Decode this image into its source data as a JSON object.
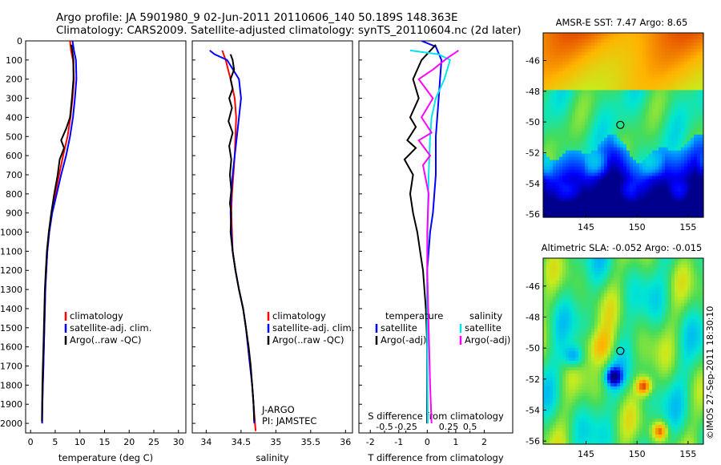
{
  "header": {
    "line1": "Argo profile: JA 5901980_9 02-Jun-2011 20110606_140 50.189S 148.363E",
    "line2": "Climatology: CARS2009. Satellite-adjusted climatology: synTS_20110604.nc (2d later)"
  },
  "watermark": "©IMOS 27-Sep-2011 18:30:10",
  "colors": {
    "climatology": "#ff0000",
    "satellite": "#0000ff",
    "argo": "#000000",
    "satellite_diff": "#00e5ee",
    "argo_adj_diff": "#ff00ff"
  },
  "depth_axis": {
    "min": 0,
    "max": 2050,
    "ticks": [
      0,
      100,
      200,
      300,
      400,
      500,
      600,
      700,
      800,
      900,
      1000,
      1100,
      1200,
      1300,
      1400,
      1500,
      1600,
      1700,
      1800,
      1900,
      2000
    ]
  },
  "chart_data": [
    {
      "type": "line",
      "id": "temperature",
      "xlabel": "temperature (deg C)",
      "xlim": [
        -1,
        31.5
      ],
      "xticks": [
        0,
        5,
        10,
        15,
        20,
        25,
        30
      ],
      "xticklabels": [
        "0",
        "5",
        "10",
        "15",
        "20",
        "25",
        "30"
      ],
      "legend": [
        "climatology",
        "satellite-adj. clim.",
        "Argo(..raw -QC)"
      ],
      "series": [
        {
          "name": "climatology",
          "color": "#ff0000",
          "points": [
            [
              8.0,
              0
            ],
            [
              8.2,
              50
            ],
            [
              8.6,
              100
            ],
            [
              8.8,
              200
            ],
            [
              8.5,
              300
            ],
            [
              8.1,
              400
            ],
            [
              7.5,
              500
            ],
            [
              6.6,
              600
            ],
            [
              5.8,
              700
            ],
            [
              5.0,
              800
            ],
            [
              4.3,
              900
            ],
            [
              3.8,
              1000
            ],
            [
              3.4,
              1100
            ],
            [
              3.2,
              1200
            ],
            [
              3.0,
              1300
            ],
            [
              2.9,
              1400
            ],
            [
              2.8,
              1500
            ],
            [
              2.7,
              1600
            ],
            [
              2.6,
              1700
            ],
            [
              2.5,
              1800
            ],
            [
              2.4,
              1900
            ],
            [
              2.35,
              2000
            ]
          ]
        },
        {
          "name": "satellite-adj. clim.",
          "color": "#0000ff",
          "points": [
            [
              8.5,
              0
            ],
            [
              8.8,
              50
            ],
            [
              9.2,
              100
            ],
            [
              9.3,
              200
            ],
            [
              9.0,
              300
            ],
            [
              8.6,
              400
            ],
            [
              8.0,
              500
            ],
            [
              7.2,
              600
            ],
            [
              6.2,
              700
            ],
            [
              5.3,
              800
            ],
            [
              4.4,
              900
            ],
            [
              3.8,
              1000
            ],
            [
              3.4,
              1100
            ],
            [
              3.2,
              1200
            ],
            [
              3.0,
              1300
            ],
            [
              2.9,
              1400
            ],
            [
              2.8,
              1500
            ],
            [
              2.7,
              1600
            ],
            [
              2.6,
              1700
            ],
            [
              2.5,
              1800
            ],
            [
              2.4,
              1900
            ],
            [
              2.35,
              2000
            ]
          ]
        },
        {
          "name": "Argo(..raw -QC)",
          "color": "#000000",
          "points": [
            [
              8.3,
              20
            ],
            [
              8.5,
              60
            ],
            [
              8.7,
              100
            ],
            [
              8.7,
              200
            ],
            [
              8.4,
              300
            ],
            [
              8.0,
              400
            ],
            [
              7.2,
              460
            ],
            [
              6.2,
              520
            ],
            [
              6.8,
              560
            ],
            [
              5.9,
              620
            ],
            [
              5.5,
              700
            ],
            [
              4.8,
              800
            ],
            [
              4.2,
              900
            ],
            [
              3.7,
              1000
            ],
            [
              3.3,
              1100
            ],
            [
              3.1,
              1200
            ],
            [
              2.9,
              1300
            ],
            [
              2.8,
              1400
            ],
            [
              2.7,
              1500
            ],
            [
              2.6,
              1600
            ],
            [
              2.5,
              1700
            ],
            [
              2.4,
              1800
            ],
            [
              2.35,
              1900
            ],
            [
              2.3,
              1990
            ]
          ]
        }
      ]
    },
    {
      "type": "line",
      "id": "salinity",
      "xlabel": "salinity",
      "xlim": [
        33.8,
        36.1
      ],
      "xticks": [
        34,
        34.5,
        35,
        35.5,
        36
      ],
      "xticklabels": [
        "34",
        "34.5",
        "35",
        "35.5",
        "36"
      ],
      "legend": [
        "climatology",
        "satellite-adj. clim.",
        "Argo(..raw -QC)"
      ],
      "annotation": [
        "J-ARGO",
        "PI: JAMSTEC"
      ],
      "series": [
        {
          "name": "climatology",
          "color": "#ff0000",
          "points": [
            [
              34.23,
              50
            ],
            [
              34.28,
              100
            ],
            [
              34.35,
              200
            ],
            [
              34.41,
              300
            ],
            [
              34.43,
              400
            ],
            [
              34.42,
              500
            ],
            [
              34.41,
              600
            ],
            [
              34.39,
              700
            ],
            [
              34.37,
              800
            ],
            [
              34.36,
              900
            ],
            [
              34.37,
              1000
            ],
            [
              34.38,
              1100
            ],
            [
              34.42,
              1200
            ],
            [
              34.47,
              1300
            ],
            [
              34.53,
              1400
            ],
            [
              34.57,
              1500
            ],
            [
              34.6,
              1600
            ],
            [
              34.63,
              1700
            ],
            [
              34.66,
              1800
            ],
            [
              34.68,
              1900
            ],
            [
              34.7,
              2000
            ],
            [
              34.71,
              2040
            ]
          ]
        },
        {
          "name": "satellite-adj. clim.",
          "color": "#0000ff",
          "points": [
            [
              34.05,
              50
            ],
            [
              34.12,
              70
            ],
            [
              34.3,
              100
            ],
            [
              34.47,
              200
            ],
            [
              34.5,
              300
            ],
            [
              34.47,
              400
            ],
            [
              34.44,
              500
            ],
            [
              34.41,
              600
            ],
            [
              34.38,
              700
            ],
            [
              34.36,
              800
            ],
            [
              34.35,
              900
            ],
            [
              34.36,
              1000
            ],
            [
              34.38,
              1100
            ],
            [
              34.42,
              1200
            ],
            [
              34.47,
              1300
            ],
            [
              34.53,
              1400
            ],
            [
              34.57,
              1500
            ],
            [
              34.6,
              1600
            ],
            [
              34.63,
              1700
            ],
            [
              34.66,
              1800
            ],
            [
              34.68,
              1900
            ],
            [
              34.69,
              2000
            ]
          ]
        },
        {
          "name": "Argo(..raw -QC)",
          "color": "#000000",
          "points": [
            [
              34.35,
              70
            ],
            [
              34.38,
              100
            ],
            [
              34.4,
              150
            ],
            [
              34.35,
              200
            ],
            [
              34.38,
              250
            ],
            [
              34.33,
              300
            ],
            [
              34.37,
              350
            ],
            [
              34.32,
              420
            ],
            [
              34.38,
              480
            ],
            [
              34.33,
              550
            ],
            [
              34.36,
              620
            ],
            [
              34.34,
              700
            ],
            [
              34.36,
              780
            ],
            [
              34.34,
              850
            ],
            [
              34.36,
              900
            ],
            [
              34.35,
              1000
            ],
            [
              34.38,
              1100
            ],
            [
              34.42,
              1200
            ],
            [
              34.47,
              1300
            ],
            [
              34.53,
              1400
            ],
            [
              34.57,
              1500
            ],
            [
              34.61,
              1600
            ],
            [
              34.64,
              1700
            ],
            [
              34.66,
              1800
            ],
            [
              34.68,
              1900
            ],
            [
              34.69,
              1990
            ]
          ]
        }
      ]
    },
    {
      "type": "line",
      "id": "difference",
      "xlabel": "T difference from climatology",
      "xlabel2": "S difference from climatology",
      "xlim": [
        -2.4,
        3.0
      ],
      "xticks": [
        -2,
        -1,
        0,
        1,
        2
      ],
      "xticklabels": [
        "-2",
        "-1",
        "0",
        "1",
        "2"
      ],
      "xticks2": [
        -1.5,
        -0.75,
        0.75,
        1.5
      ],
      "xticklabels2": [
        "-0.5",
        "-0.25",
        "0.25",
        "0.5"
      ],
      "legend": [
        "temperature",
        "satellite",
        "Argo(-adj)",
        "salinity",
        "satellite",
        "Argo(-adj)"
      ],
      "series": [
        {
          "name": "temperature satellite",
          "color": "#0000ff",
          "points": [
            [
              -0.2,
              0
            ],
            [
              0.3,
              30
            ],
            [
              0.5,
              100
            ],
            [
              0.45,
              200
            ],
            [
              0.4,
              300
            ],
            [
              0.35,
              400
            ],
            [
              0.3,
              500
            ],
            [
              0.3,
              600
            ],
            [
              0.3,
              700
            ],
            [
              0.25,
              800
            ],
            [
              0.2,
              900
            ],
            [
              0.1,
              1000
            ],
            [
              0.05,
              1100
            ],
            [
              0,
              1200
            ],
            [
              0,
              1500
            ],
            [
              0,
              2000
            ]
          ]
        },
        {
          "name": "temperature Argo(-adj)",
          "color": "#000000",
          "points": [
            [
              0.3,
              20
            ],
            [
              -0.2,
              100
            ],
            [
              -0.5,
              200
            ],
            [
              -0.3,
              300
            ],
            [
              -0.6,
              400
            ],
            [
              -0.4,
              450
            ],
            [
              -0.7,
              520
            ],
            [
              -0.4,
              560
            ],
            [
              -0.8,
              620
            ],
            [
              -0.5,
              700
            ],
            [
              -0.6,
              800
            ],
            [
              -0.5,
              900
            ],
            [
              -0.35,
              1000
            ],
            [
              -0.25,
              1100
            ],
            [
              -0.15,
              1200
            ],
            [
              -0.05,
              1400
            ],
            [
              0,
              1600
            ],
            [
              0,
              2000
            ]
          ]
        },
        {
          "name": "salinity satellite",
          "color": "#00e5ee",
          "points": [
            [
              -0.6,
              50
            ],
            [
              0.4,
              70
            ],
            [
              0.8,
              100
            ],
            [
              0.6,
              200
            ],
            [
              0.3,
              300
            ],
            [
              0.15,
              400
            ],
            [
              0.1,
              500
            ],
            [
              0.05,
              700
            ],
            [
              0.02,
              900
            ],
            [
              0.0,
              1200
            ],
            [
              0.0,
              1500
            ],
            [
              0.02,
              2000
            ]
          ]
        },
        {
          "name": "salinity Argo(-adj)",
          "color": "#ff00ff",
          "points": [
            [
              1.1,
              50
            ],
            [
              0.7,
              90
            ],
            [
              0.2,
              150
            ],
            [
              -0.3,
              200
            ],
            [
              0.2,
              300
            ],
            [
              -0.2,
              400
            ],
            [
              0.15,
              480
            ],
            [
              -0.3,
              520
            ],
            [
              0.1,
              600
            ],
            [
              -0.15,
              650
            ],
            [
              0.05,
              800
            ],
            [
              0.0,
              1000
            ],
            [
              0.0,
              1200
            ],
            [
              0.05,
              1500
            ],
            [
              0.1,
              1800
            ],
            [
              0.15,
              2000
            ]
          ]
        }
      ]
    },
    {
      "type": "heatmap",
      "id": "sst_map",
      "title": "AMSR-E SST: 7.47 Argo: 8.65",
      "xlim": [
        140.8,
        156.5
      ],
      "ylim": [
        -56.2,
        -44.2
      ],
      "xticks": [
        145,
        150,
        155
      ],
      "yticks": [
        -46,
        -48,
        -50,
        -52,
        -54,
        -56
      ],
      "xticklabels": [
        "145",
        "150",
        "155"
      ],
      "yticklabels": [
        "-46",
        "-48",
        "-50",
        "-52",
        "-54",
        "-56"
      ],
      "marker": {
        "lon": 148.363,
        "lat": -50.189
      }
    },
    {
      "type": "heatmap",
      "id": "sla_map",
      "title": "Altimetric SLA: -0.052 Argo: -0.015",
      "xlim": [
        140.8,
        156.5
      ],
      "ylim": [
        -56.2,
        -44.2
      ],
      "xticks": [
        145,
        150,
        155
      ],
      "yticks": [
        -46,
        -48,
        -50,
        -52,
        -54,
        -56
      ],
      "xticklabels": [
        "145",
        "150",
        "155"
      ],
      "yticklabels": [
        "-46",
        "-48",
        "-50",
        "-52",
        "-54",
        "-56"
      ],
      "marker": {
        "lon": 148.363,
        "lat": -50.189
      }
    }
  ]
}
